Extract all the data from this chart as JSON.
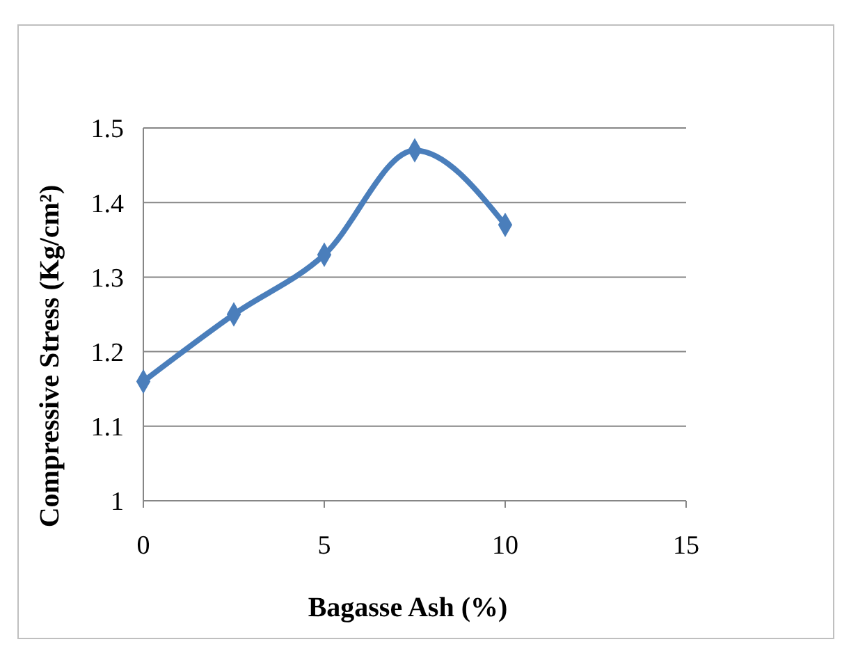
{
  "chart_data": {
    "type": "line",
    "xlabel": "Bagasse Ash (%)",
    "ylabel": "Compressive Stress (Kg/cm²)",
    "x": [
      0,
      2.5,
      5,
      7.5,
      10
    ],
    "series": [
      {
        "color": "#4a7ebb",
        "values": [
          1.16,
          1.25,
          1.33,
          1.47,
          1.37
        ]
      }
    ],
    "xlim": [
      0,
      15
    ],
    "xticks": [
      0,
      5,
      10,
      15
    ],
    "ylim": [
      1,
      1.5
    ],
    "yticks": [
      1,
      1.1,
      1.2,
      1.3,
      1.4,
      1.5
    ],
    "grid": "y",
    "marker": "diamond",
    "line_style": "solid"
  }
}
